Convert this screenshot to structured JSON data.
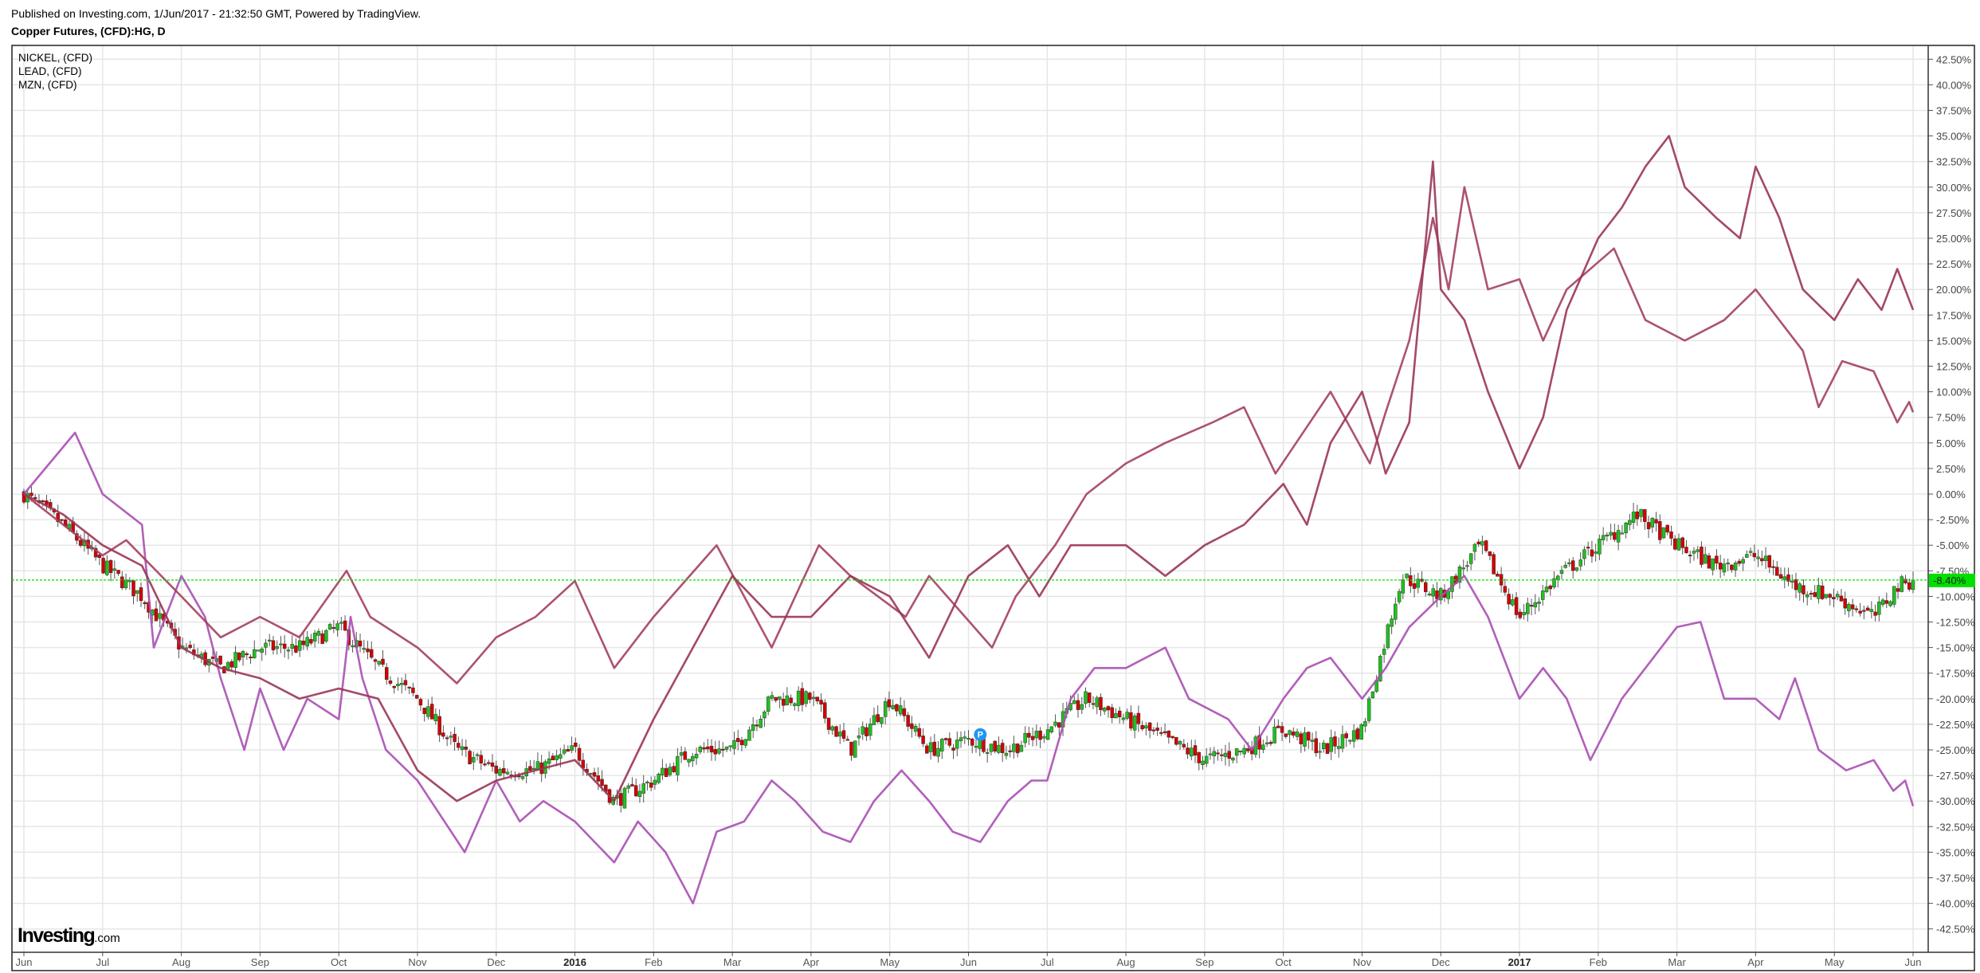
{
  "header": {
    "published": "Published on Investing.com, 1/Jun/2017 - 21:32:50 GMT, Powered by TradingView.",
    "title": "Copper Futures, (CFD):HG, D"
  },
  "logo": {
    "main": "Investing",
    "suffix": ".com"
  },
  "chart_data": {
    "type": "line",
    "title": "Copper Futures, (CFD):HG, D",
    "xlabel": "",
    "ylabel": "",
    "x_unit": "months since 1 Jun 2015",
    "xlim": [
      0,
      24.2
    ],
    "ylim": [
      -45,
      45
    ],
    "grid": true,
    "legend_position": "top-left",
    "x_ticks": [
      {
        "m": 0,
        "label": "Jun"
      },
      {
        "m": 1,
        "label": "Jul"
      },
      {
        "m": 2,
        "label": "Aug"
      },
      {
        "m": 3,
        "label": "Sep"
      },
      {
        "m": 4,
        "label": "Oct"
      },
      {
        "m": 5,
        "label": "Nov"
      },
      {
        "m": 6,
        "label": "Dec"
      },
      {
        "m": 7,
        "label": "2016",
        "bold": true
      },
      {
        "m": 8,
        "label": "Feb"
      },
      {
        "m": 9,
        "label": "Mar"
      },
      {
        "m": 10,
        "label": "Apr"
      },
      {
        "m": 11,
        "label": "May"
      },
      {
        "m": 12,
        "label": "Jun"
      },
      {
        "m": 13,
        "label": "Jul"
      },
      {
        "m": 14,
        "label": "Aug"
      },
      {
        "m": 15,
        "label": "Sep"
      },
      {
        "m": 16,
        "label": "Oct"
      },
      {
        "m": 17,
        "label": "Nov"
      },
      {
        "m": 18,
        "label": "Dec"
      },
      {
        "m": 19,
        "label": "2017",
        "bold": true
      },
      {
        "m": 20,
        "label": "Feb"
      },
      {
        "m": 21,
        "label": "Mar"
      },
      {
        "m": 22,
        "label": "Apr"
      },
      {
        "m": 23,
        "label": "May"
      },
      {
        "m": 24,
        "label": "Jun"
      }
    ],
    "y_ticks": [
      42.5,
      40,
      37.5,
      35,
      32.5,
      30,
      27.5,
      25,
      22.5,
      20,
      17.5,
      15,
      12.5,
      10,
      7.5,
      5,
      2.5,
      0,
      -2.5,
      -5,
      -7.5,
      -10,
      -12.5,
      -15,
      -17.5,
      -20,
      -22.5,
      -25,
      -27.5,
      -30,
      -32.5,
      -35,
      -37.5,
      -40,
      -42.5
    ],
    "y_tick_suffix": "%",
    "main_series": {
      "name": "Copper Futures (HG)",
      "style": "candlestick",
      "up_color": "#1fc21f",
      "down_color": "#d40000",
      "close_path": [
        [
          0,
          0
        ],
        [
          0.5,
          -3
        ],
        [
          1,
          -7
        ],
        [
          1.5,
          -10
        ],
        [
          2,
          -15
        ],
        [
          2.5,
          -17
        ],
        [
          3,
          -15
        ],
        [
          3.5,
          -15
        ],
        [
          4,
          -13
        ],
        [
          4.5,
          -17
        ],
        [
          5,
          -20
        ],
        [
          5.5,
          -25
        ],
        [
          6,
          -27
        ],
        [
          6.5,
          -27
        ],
        [
          7,
          -25
        ],
        [
          7.5,
          -30
        ],
        [
          8,
          -28
        ],
        [
          8.5,
          -25
        ],
        [
          9,
          -25
        ],
        [
          9.5,
          -20
        ],
        [
          10,
          -20
        ],
        [
          10.5,
          -25
        ],
        [
          11,
          -20
        ],
        [
          11.5,
          -25
        ],
        [
          12,
          -24
        ],
        [
          12.5,
          -25
        ],
        [
          13,
          -23
        ],
        [
          13.5,
          -20
        ],
        [
          14,
          -22
        ],
        [
          14.5,
          -24
        ],
        [
          15,
          -26
        ],
        [
          15.5,
          -25
        ],
        [
          16,
          -23
        ],
        [
          16.5,
          -25
        ],
        [
          17,
          -23
        ],
        [
          17.5,
          -8
        ],
        [
          18,
          -10
        ],
        [
          18.5,
          -5
        ],
        [
          19,
          -12
        ],
        [
          19.5,
          -8
        ],
        [
          20,
          -5
        ],
        [
          20.5,
          -2
        ],
        [
          21,
          -5
        ],
        [
          21.5,
          -7
        ],
        [
          22,
          -6
        ],
        [
          22.5,
          -9
        ],
        [
          23,
          -10
        ],
        [
          23.5,
          -12
        ],
        [
          23.8,
          -9
        ],
        [
          24,
          -8.4
        ]
      ],
      "last_value_label": "-8.40%",
      "last_value": -8.4,
      "last_label_color": "#00e000"
    },
    "series": [
      {
        "name": "NICKEL,  (CFD)",
        "color": "#a84fb3",
        "points": [
          [
            0,
            0
          ],
          [
            0.65,
            6
          ],
          [
            1,
            0
          ],
          [
            1.5,
            -3
          ],
          [
            1.65,
            -15
          ],
          [
            2,
            -8
          ],
          [
            2.3,
            -12
          ],
          [
            2.5,
            -18
          ],
          [
            2.8,
            -25
          ],
          [
            3,
            -19
          ],
          [
            3.3,
            -25
          ],
          [
            3.6,
            -20
          ],
          [
            4,
            -22
          ],
          [
            4.15,
            -12
          ],
          [
            4.3,
            -18
          ],
          [
            4.6,
            -25
          ],
          [
            5,
            -28
          ],
          [
            5.6,
            -35
          ],
          [
            6,
            -28
          ],
          [
            6.3,
            -32
          ],
          [
            6.6,
            -30
          ],
          [
            7,
            -32
          ],
          [
            7.5,
            -36
          ],
          [
            7.8,
            -32
          ],
          [
            8.15,
            -35
          ],
          [
            8.5,
            -40
          ],
          [
            8.8,
            -33
          ],
          [
            9.15,
            -32
          ],
          [
            9.5,
            -28
          ],
          [
            9.8,
            -30
          ],
          [
            10.15,
            -33
          ],
          [
            10.5,
            -34
          ],
          [
            10.8,
            -30
          ],
          [
            11.15,
            -27
          ],
          [
            11.5,
            -30
          ],
          [
            11.8,
            -33
          ],
          [
            12.15,
            -34
          ],
          [
            12.5,
            -30
          ],
          [
            12.8,
            -28
          ],
          [
            13,
            -28
          ],
          [
            13.3,
            -20
          ],
          [
            13.6,
            -17
          ],
          [
            14,
            -17
          ],
          [
            14.5,
            -15
          ],
          [
            14.8,
            -20
          ],
          [
            15.3,
            -22
          ],
          [
            15.6,
            -25
          ],
          [
            16,
            -20
          ],
          [
            16.3,
            -17
          ],
          [
            16.6,
            -16
          ],
          [
            17,
            -20
          ],
          [
            17.3,
            -17
          ],
          [
            17.6,
            -13
          ],
          [
            18,
            -10
          ],
          [
            18.3,
            -8
          ],
          [
            18.6,
            -12
          ],
          [
            19,
            -20
          ],
          [
            19.3,
            -17
          ],
          [
            19.6,
            -20
          ],
          [
            19.9,
            -26
          ],
          [
            20.3,
            -20
          ],
          [
            20.6,
            -17
          ],
          [
            21,
            -13
          ],
          [
            21.3,
            -12.5
          ],
          [
            21.6,
            -20
          ],
          [
            22,
            -20
          ],
          [
            22.3,
            -22
          ],
          [
            22.5,
            -18
          ],
          [
            22.8,
            -25
          ],
          [
            23.15,
            -27
          ],
          [
            23.5,
            -26
          ],
          [
            23.75,
            -29
          ],
          [
            23.9,
            -28
          ],
          [
            24,
            -30.5
          ]
        ]
      },
      {
        "name": "LEAD,  (CFD)",
        "color": "#a3405f",
        "points": [
          [
            0,
            0
          ],
          [
            0.5,
            -3
          ],
          [
            1,
            -6
          ],
          [
            1.3,
            -4.5
          ],
          [
            2,
            -10
          ],
          [
            2.5,
            -14
          ],
          [
            3,
            -12
          ],
          [
            3.5,
            -14
          ],
          [
            4.1,
            -7.5
          ],
          [
            4.4,
            -12
          ],
          [
            5,
            -15
          ],
          [
            5.5,
            -18.5
          ],
          [
            6,
            -14
          ],
          [
            6.5,
            -12
          ],
          [
            7,
            -8.5
          ],
          [
            7.5,
            -17
          ],
          [
            8,
            -12
          ],
          [
            8.8,
            -5
          ],
          [
            9.5,
            -15
          ],
          [
            10.1,
            -5
          ],
          [
            10.5,
            -8
          ],
          [
            11.2,
            -12
          ],
          [
            11.5,
            -8
          ],
          [
            12.3,
            -15
          ],
          [
            12.6,
            -10
          ],
          [
            13.1,
            -5
          ],
          [
            13.5,
            0
          ],
          [
            14,
            3
          ],
          [
            14.5,
            5
          ],
          [
            15.1,
            7
          ],
          [
            15.5,
            8.5
          ],
          [
            15.9,
            2
          ],
          [
            16.6,
            10
          ],
          [
            17.1,
            3
          ],
          [
            17.3,
            8
          ],
          [
            17.6,
            15
          ],
          [
            17.9,
            27
          ],
          [
            18.1,
            20
          ],
          [
            18.3,
            30
          ],
          [
            18.6,
            20
          ],
          [
            19,
            21
          ],
          [
            19.3,
            15
          ],
          [
            19.6,
            20
          ],
          [
            20.2,
            24
          ],
          [
            20.6,
            17
          ],
          [
            21.1,
            15
          ],
          [
            21.6,
            17
          ],
          [
            22,
            20
          ],
          [
            22.3,
            17
          ],
          [
            22.6,
            14
          ],
          [
            22.8,
            8.5
          ],
          [
            23.1,
            13
          ],
          [
            23.5,
            12
          ],
          [
            23.8,
            7
          ],
          [
            23.95,
            9
          ],
          [
            24,
            8
          ]
        ]
      },
      {
        "name": "MZN,  (CFD)",
        "color": "#9a3556",
        "points": [
          [
            0,
            0
          ],
          [
            0.5,
            -2
          ],
          [
            1,
            -5
          ],
          [
            1.5,
            -7
          ],
          [
            2,
            -15
          ],
          [
            2.5,
            -17
          ],
          [
            3,
            -18
          ],
          [
            3.5,
            -20
          ],
          [
            4,
            -19
          ],
          [
            4.5,
            -20
          ],
          [
            5,
            -27
          ],
          [
            5.5,
            -30
          ],
          [
            6,
            -28
          ],
          [
            6.5,
            -27
          ],
          [
            7,
            -26
          ],
          [
            7.5,
            -30
          ],
          [
            8,
            -22
          ],
          [
            8.5,
            -15
          ],
          [
            9,
            -8
          ],
          [
            9.5,
            -12
          ],
          [
            10,
            -12
          ],
          [
            10.5,
            -8
          ],
          [
            11,
            -10
          ],
          [
            11.5,
            -16
          ],
          [
            12,
            -8
          ],
          [
            12.5,
            -5
          ],
          [
            12.9,
            -10
          ],
          [
            13.3,
            -5
          ],
          [
            14,
            -5
          ],
          [
            14.5,
            -8
          ],
          [
            15,
            -5
          ],
          [
            15.5,
            -3
          ],
          [
            16,
            1
          ],
          [
            16.3,
            -3
          ],
          [
            16.6,
            5
          ],
          [
            17,
            10
          ],
          [
            17.2,
            5
          ],
          [
            17.3,
            2
          ],
          [
            17.6,
            7
          ],
          [
            17.9,
            32.5
          ],
          [
            18,
            20
          ],
          [
            18.3,
            17
          ],
          [
            18.6,
            10
          ],
          [
            19,
            2.5
          ],
          [
            19.3,
            7.5
          ],
          [
            19.6,
            18
          ],
          [
            20,
            25
          ],
          [
            20.3,
            28
          ],
          [
            20.6,
            32
          ],
          [
            20.9,
            35
          ],
          [
            21.1,
            30
          ],
          [
            21.5,
            27
          ],
          [
            21.8,
            25
          ],
          [
            22,
            32
          ],
          [
            22.3,
            27
          ],
          [
            22.6,
            20
          ],
          [
            23,
            17
          ],
          [
            23.3,
            21
          ],
          [
            23.6,
            18
          ],
          [
            23.8,
            22
          ],
          [
            24,
            18
          ]
        ]
      }
    ],
    "annotations": [
      {
        "type": "marker",
        "label": "P",
        "m": 12.15,
        "value": -23.5,
        "color": "#2196f3"
      }
    ]
  }
}
